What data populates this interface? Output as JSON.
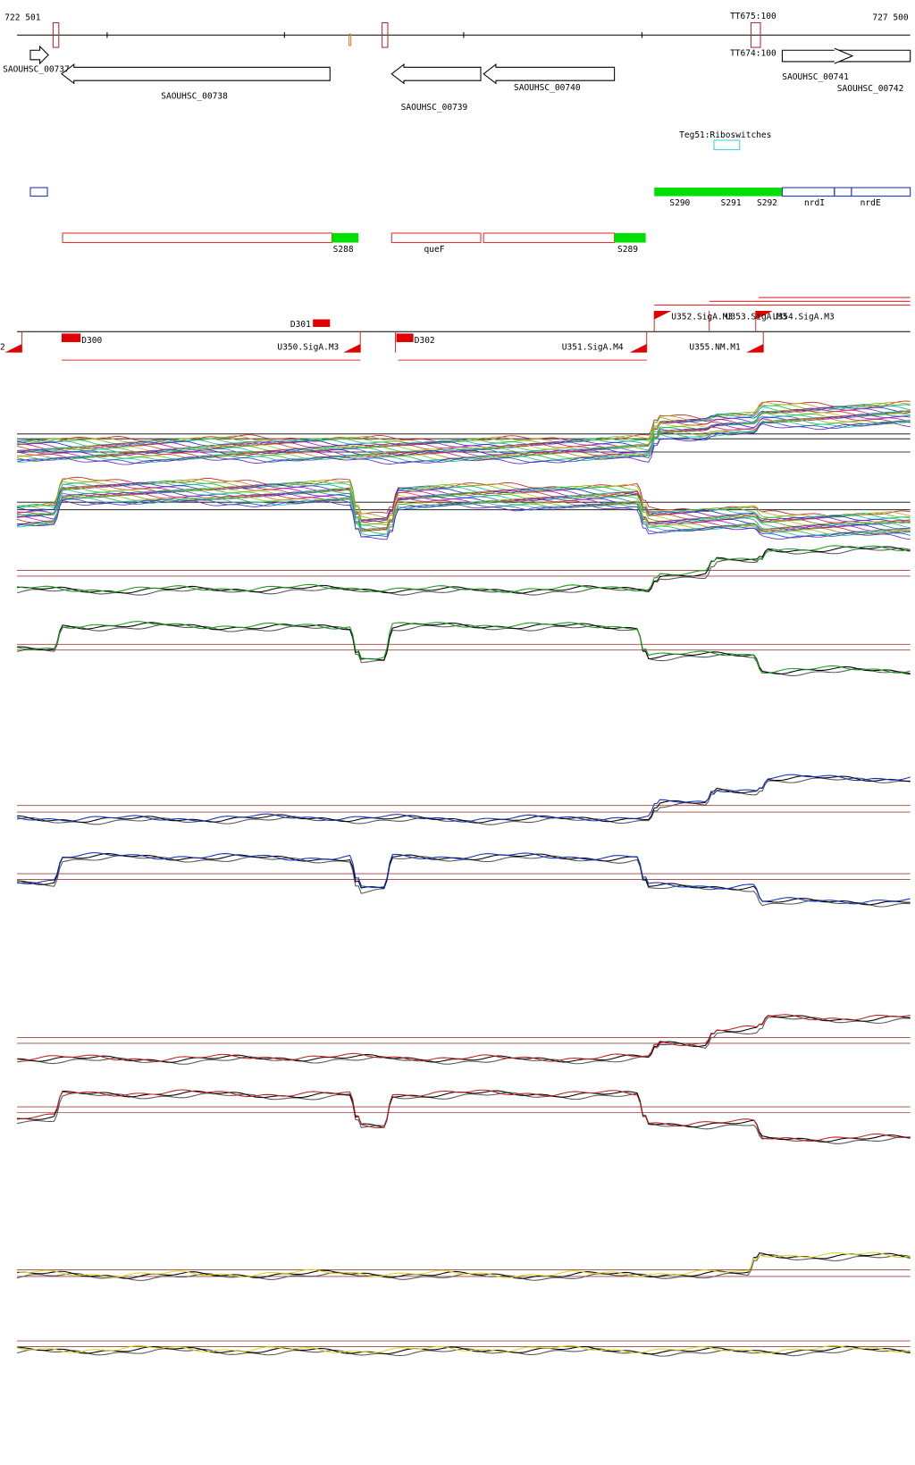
{
  "coordinates": {
    "start": "722 501",
    "end": "727 500"
  },
  "terminators": [
    "TT675:100",
    "TT674:100"
  ],
  "genes": [
    "SAOUHSC_00737",
    "SAOUHSC_00738",
    "SAOUHSC_00739",
    "SAOUHSC_00740",
    "SAOUHSC_00741",
    "SAOUHSC_00742"
  ],
  "riboswitch": "Teg51:Riboswitches",
  "segments": [
    "S290",
    "S291",
    "S292",
    "nrdI",
    "nrdE",
    "S288",
    "queF",
    "S289"
  ],
  "promoters": [
    "D301",
    "D300",
    "D302",
    "U350.SigA.M3",
    "U351.SigA.M4",
    "U352.SigA.M3",
    "U353.SigA.M3",
    "U354.SigA.M3",
    "U355.NM.M1",
    "2"
  ]
}
